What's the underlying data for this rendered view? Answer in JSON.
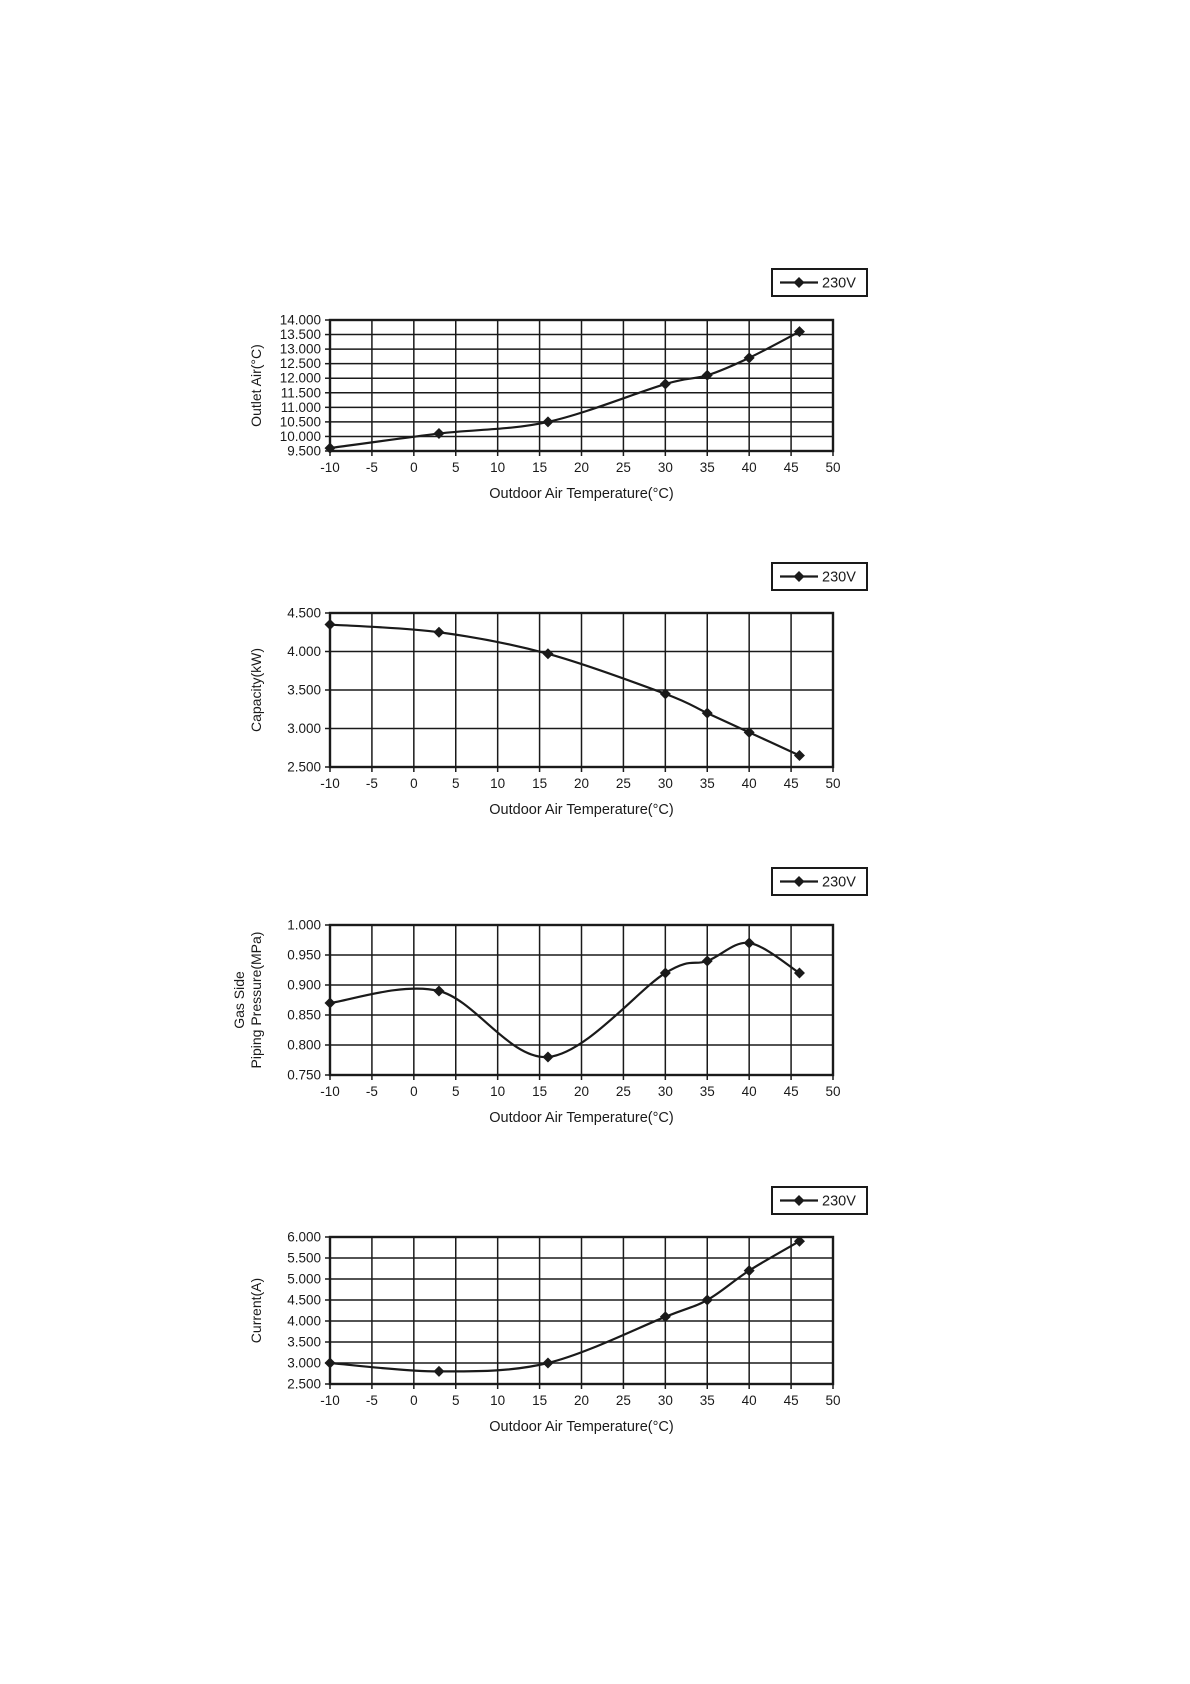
{
  "page": {
    "background": "#ffffff",
    "ink": "#1a1a1a",
    "description": "Four stacked performance curves versus outdoor air temperature"
  },
  "chart_data": [
    {
      "type": "line",
      "title": "",
      "xlabel": "Outdoor Air Temperature(°C)",
      "ylabel_lines": [
        "Outlet Air(°C)"
      ],
      "xlim": [
        -10,
        50
      ],
      "ylim": [
        9.5,
        14.0
      ],
      "xtick_labels": [
        "-10",
        "-5",
        "0",
        "5",
        "10",
        "15",
        "20",
        "25",
        "30",
        "35",
        "40",
        "45",
        "50"
      ],
      "ytick_labels": [
        "14.000",
        "13.500",
        "13.000",
        "12.500",
        "12.000",
        "11.500",
        "11.000",
        "10.500",
        "10.000",
        "9.500"
      ],
      "grid": true,
      "line_smooth": true,
      "marker": "diamond",
      "legend": {
        "label": "230V",
        "position": "top-right"
      },
      "series": [
        {
          "name": "230V",
          "x": [
            -10,
            3,
            16,
            30,
            35,
            40,
            46
          ],
          "y": [
            9.6,
            10.1,
            10.5,
            11.8,
            12.1,
            12.7,
            13.6
          ]
        }
      ]
    },
    {
      "type": "line",
      "title": "",
      "xlabel": "Outdoor Air Temperature(°C)",
      "ylabel_lines": [
        "Capacity(kW)"
      ],
      "xlim": [
        -10,
        50
      ],
      "ylim": [
        2.5,
        4.5
      ],
      "xtick_labels": [
        "-10",
        "-5",
        "0",
        "5",
        "10",
        "15",
        "20",
        "25",
        "30",
        "35",
        "40",
        "45",
        "50"
      ],
      "ytick_labels": [
        "4.500",
        "4.000",
        "3.500",
        "3.000",
        "2.500"
      ],
      "grid": true,
      "line_smooth": true,
      "marker": "diamond",
      "legend": {
        "label": "230V",
        "position": "top-right"
      },
      "series": [
        {
          "name": "230V",
          "x": [
            -10,
            3,
            16,
            30,
            35,
            40,
            46
          ],
          "y": [
            4.35,
            4.25,
            3.97,
            3.45,
            3.2,
            2.95,
            2.65
          ]
        }
      ]
    },
    {
      "type": "line",
      "title": "",
      "xlabel": "Outdoor Air Temperature(°C)",
      "ylabel_lines": [
        "Gas Side",
        "Piping Pressure(MPa)"
      ],
      "xlim": [
        -10,
        50
      ],
      "ylim": [
        0.75,
        1.0
      ],
      "xtick_labels": [
        "-10",
        "-5",
        "0",
        "5",
        "10",
        "15",
        "20",
        "25",
        "30",
        "35",
        "40",
        "45",
        "50"
      ],
      "ytick_labels": [
        "1.000",
        "0.950",
        "0.900",
        "0.850",
        "0.800",
        "0.750"
      ],
      "grid": true,
      "line_smooth": true,
      "marker": "diamond",
      "legend": {
        "label": "230V",
        "position": "top-right"
      },
      "series": [
        {
          "name": "230V",
          "x": [
            -10,
            3,
            16,
            30,
            35,
            40,
            46
          ],
          "y": [
            0.87,
            0.89,
            0.78,
            0.92,
            0.94,
            0.97,
            0.92
          ]
        }
      ]
    },
    {
      "type": "line",
      "title": "",
      "xlabel": "Outdoor Air Temperature(°C)",
      "ylabel_lines": [
        "Current(A)"
      ],
      "xlim": [
        -10,
        50
      ],
      "ylim": [
        2.5,
        6.0
      ],
      "xtick_labels": [
        "-10",
        "-5",
        "0",
        "5",
        "10",
        "15",
        "20",
        "25",
        "30",
        "35",
        "40",
        "45",
        "50"
      ],
      "ytick_labels": [
        "6.000",
        "5.500",
        "5.000",
        "4.500",
        "4.000",
        "3.500",
        "3.000",
        "2.500"
      ],
      "grid": true,
      "line_smooth": true,
      "marker": "diamond",
      "legend": {
        "label": "230V",
        "position": "top-right"
      },
      "series": [
        {
          "name": "230V",
          "x": [
            -10,
            3,
            16,
            30,
            35,
            40,
            46
          ],
          "y": [
            3.0,
            2.8,
            3.0,
            4.1,
            4.5,
            5.2,
            5.9
          ]
        }
      ]
    }
  ]
}
